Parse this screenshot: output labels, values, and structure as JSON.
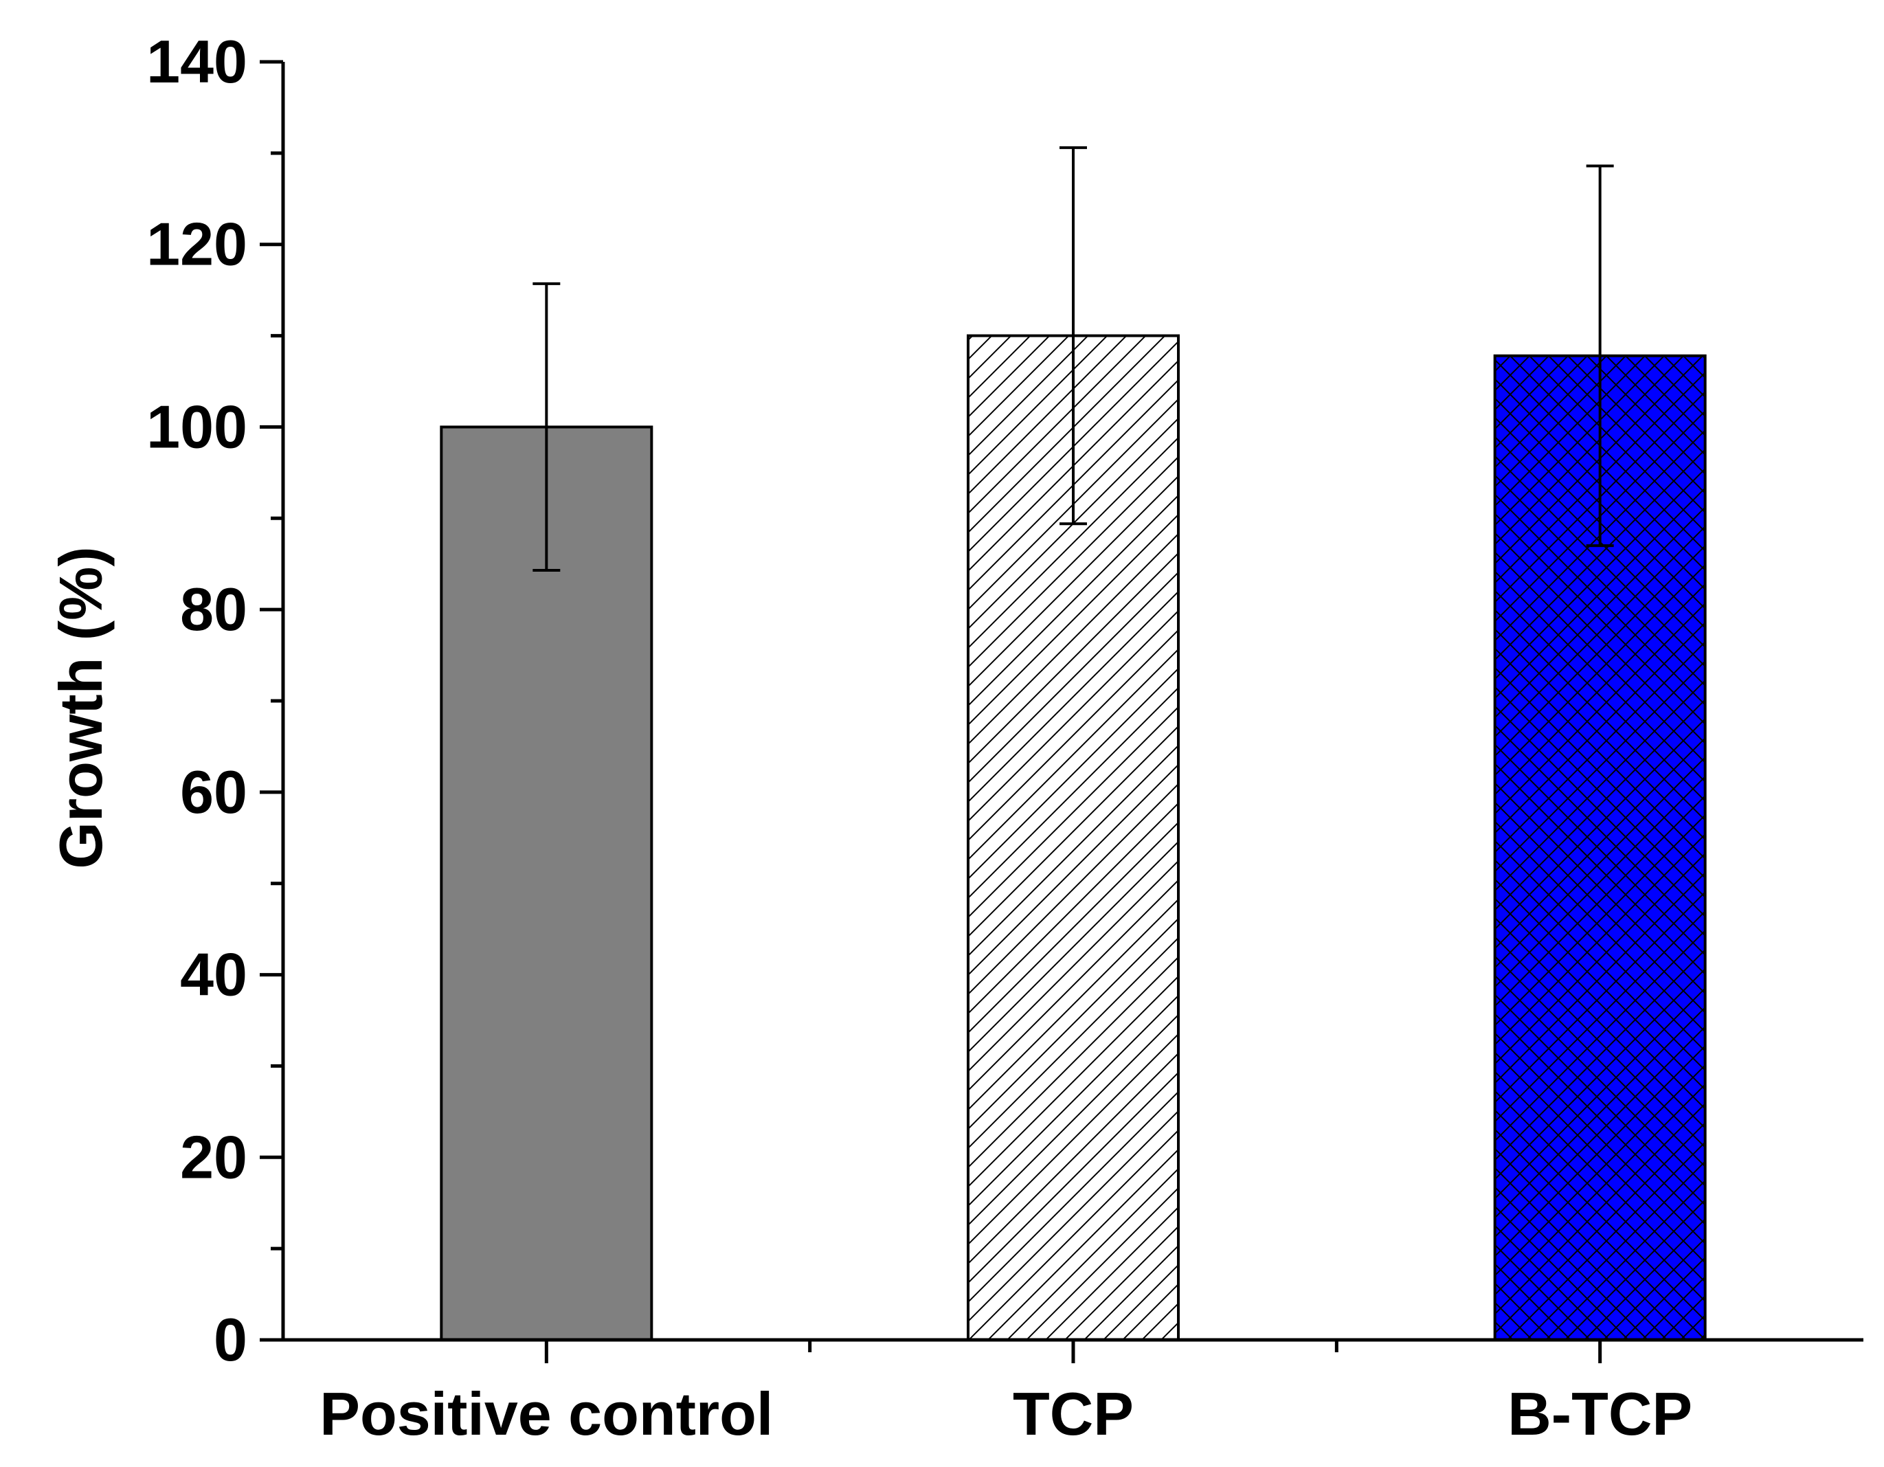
{
  "chart_data": {
    "type": "bar",
    "title": "",
    "xlabel": "",
    "ylabel": "Growth (%)",
    "ylim": [
      0,
      140
    ],
    "yticks": [
      0,
      20,
      40,
      60,
      80,
      100,
      120,
      140
    ],
    "ytick_labels": [
      "0",
      "20",
      "40",
      "60",
      "80",
      "100",
      "120",
      "140"
    ],
    "categories": [
      "Positive control",
      "TCP",
      "B-TCP"
    ],
    "values": [
      100,
      110,
      107.8
    ],
    "error": [
      15.7,
      20.6,
      20.8
    ],
    "bar_styles": [
      {
        "fill": "#808080",
        "pattern": "solid"
      },
      {
        "fill": "#ffffff",
        "pattern": "diagonal-hatch"
      },
      {
        "fill": "#0000ff",
        "pattern": "cross-hatch"
      }
    ],
    "grid": false,
    "legend": "none"
  }
}
